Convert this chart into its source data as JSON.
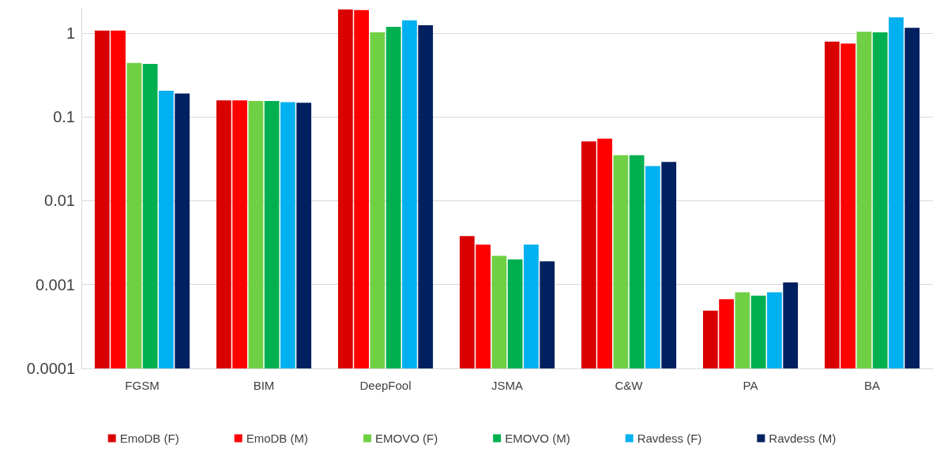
{
  "chart_data": {
    "type": "bar",
    "categories": [
      "FGSM",
      "BIM",
      "DeepFool",
      "JSMA",
      "C&W",
      "PA",
      "BA"
    ],
    "series": [
      {
        "name": "EmoDB (F)",
        "color": "#d90000",
        "values": [
          1.07,
          0.158,
          1.92,
          0.0038,
          0.051,
          0.00049,
          0.79
        ]
      },
      {
        "name": "EmoDB (M)",
        "color": "#ff0000",
        "values": [
          1.07,
          0.158,
          1.88,
          0.003,
          0.055,
          0.00067,
          0.75
        ]
      },
      {
        "name": "EMOVO (F)",
        "color": "#70d044",
        "values": [
          0.44,
          0.155,
          1.02,
          0.0022,
          0.035,
          0.00081,
          1.04
        ]
      },
      {
        "name": "EMOVO (M)",
        "color": "#00b050",
        "values": [
          0.43,
          0.155,
          1.19,
          0.002,
          0.035,
          0.00074,
          1.02
        ]
      },
      {
        "name": "Ravdess (F)",
        "color": "#00b0f0",
        "values": [
          0.205,
          0.15,
          1.42,
          0.003,
          0.026,
          0.00081,
          1.54
        ]
      },
      {
        "name": "Ravdess (M)",
        "color": "#002060",
        "values": [
          0.19,
          0.148,
          1.24,
          0.0019,
          0.029,
          0.00106,
          1.16
        ]
      }
    ],
    "log": "y",
    "ylim": [
      0.0001,
      2
    ],
    "yticks": [
      0.0001,
      0.001,
      0.01,
      0.1,
      1
    ],
    "grid": "y",
    "legend": "bottom"
  }
}
